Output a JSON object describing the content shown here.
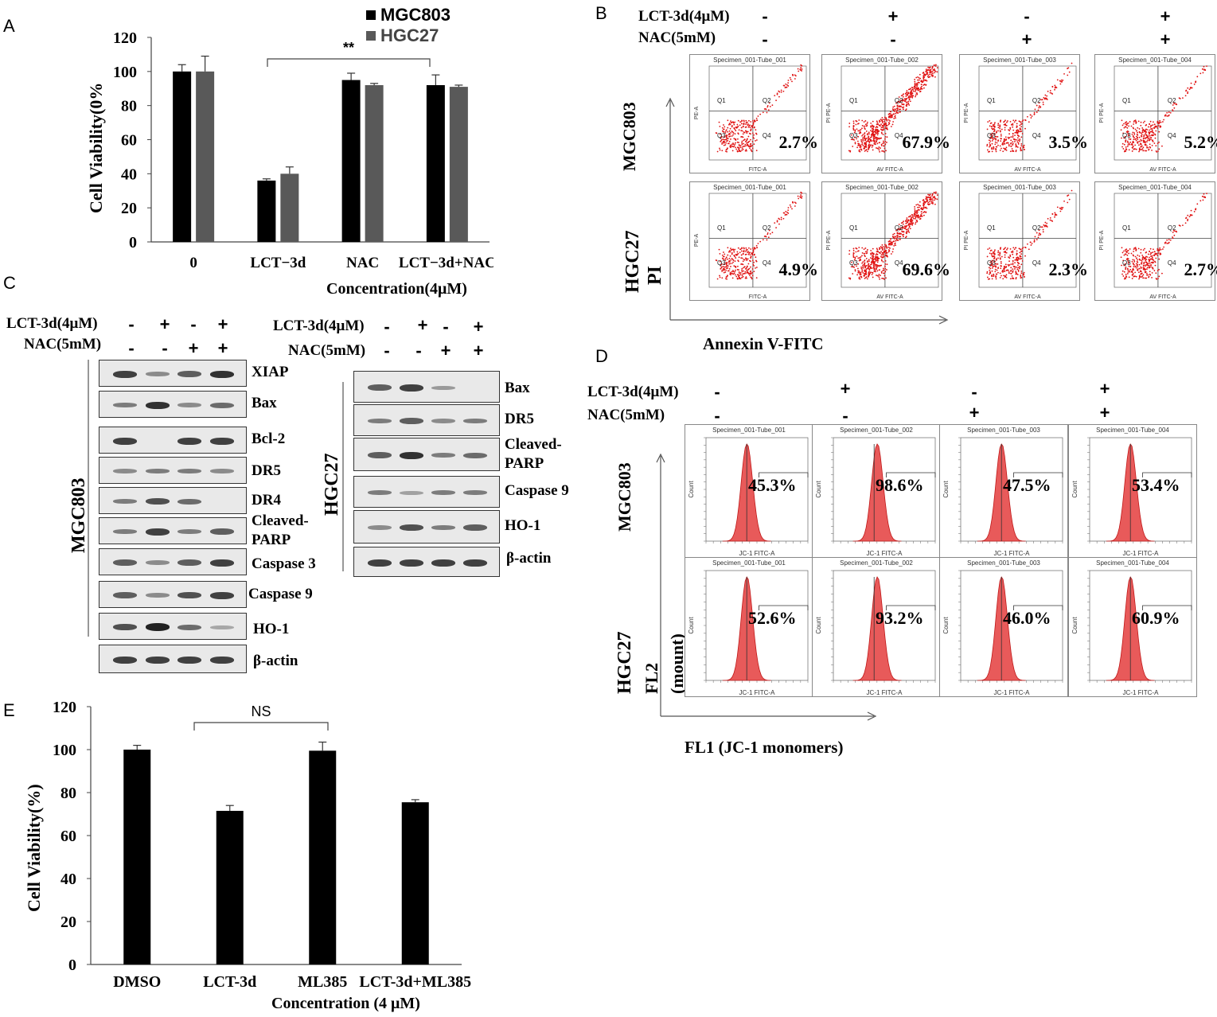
{
  "panelA": {
    "label": "A",
    "chart_data": {
      "type": "bar",
      "categories": [
        "0",
        "LCT−3d",
        "NAC",
        "LCT−3d+NAC"
      ],
      "series": [
        {
          "name": "MGC803",
          "values": [
            100,
            36,
            95,
            92
          ],
          "errors": [
            4,
            1,
            4,
            6
          ],
          "color": "#000000"
        },
        {
          "name": "HGC27",
          "values": [
            100,
            40,
            92,
            91
          ],
          "errors": [
            9,
            4,
            1,
            1
          ],
          "color": "#595959"
        }
      ],
      "ylabel": "Cell Viability(0%",
      "xlabel": "Concentration(4μM)",
      "ylim": [
        0,
        120
      ],
      "yticks": [
        "0",
        "20",
        "40",
        "60",
        "80",
        "100",
        "120"
      ],
      "annotation": "**"
    }
  },
  "panelB": {
    "label": "B",
    "lct_label": "LCT-3d(4μM)",
    "nac_label": "NAC(5mM)",
    "lct_signs": [
      "-",
      "+",
      "-",
      "+"
    ],
    "nac_signs": [
      "-",
      "-",
      "+",
      "+"
    ],
    "row_labels": [
      "MGC803",
      "HGC27"
    ],
    "y_axis_label": "PI",
    "x_axis_label": "Annexin V-FITC",
    "rows": [
      {
        "titles": [
          "Specimen_001-Tube_001",
          "Specimen_001-Tube_002",
          "Specimen_001-Tube_003",
          "Specimen_001-Tube_004"
        ],
        "values": [
          "2.7%",
          "67.9%",
          "3.5%",
          "5.2%"
        ],
        "xaxis": [
          "FITC-A",
          "AV FITC-A",
          "AV FITC-A",
          "AV FITC-A"
        ],
        "yaxis": [
          "PE-A",
          "PI PE-A",
          "PI PE-A",
          "PI PE-A"
        ]
      },
      {
        "titles": [
          "Specimen_001-Tube_001",
          "Specimen_001-Tube_002",
          "Specimen_001-Tube_003",
          "Specimen_001-Tube_004"
        ],
        "values": [
          "4.9%",
          "69.6%",
          "2.3%",
          "2.7%"
        ],
        "xaxis": [
          "FITC-A",
          "AV FITC-A",
          "AV FITC-A",
          "AV FITC-A"
        ],
        "yaxis": [
          "PE-A",
          "PI PE-A",
          "PI PE-A",
          "PI PE-A"
        ]
      }
    ],
    "quadrants": [
      "Q1",
      "Q2",
      "Q3",
      "Q4"
    ]
  },
  "panelC": {
    "label": "C",
    "lct_label": "LCT-3d(4μM)",
    "nac_label": "NAC(5mM)",
    "lct_signs": [
      "-",
      "+",
      "-",
      "+"
    ],
    "nac_signs": [
      "-",
      "-",
      "+",
      "+"
    ],
    "left_cell": "MGC803",
    "right_cell": "HGC27",
    "left_proteins": [
      "XIAP",
      "Bax",
      "Bcl-2",
      "DR5",
      "DR4",
      "Cleaved-",
      "PARP",
      "Caspase 3",
      "Caspase 9",
      "HO-1",
      "β-actin"
    ],
    "right_proteins": [
      "Bax",
      "DR5",
      "Cleaved-",
      "PARP",
      "Caspase 9",
      "HO-1",
      "β-actin"
    ]
  },
  "panelD": {
    "label": "D",
    "lct_label": "LCT-3d(4μM)",
    "nac_label": "NAC(5mM)",
    "lct_signs": [
      "-",
      "+",
      "-",
      "+"
    ],
    "nac_signs": [
      "-",
      "-",
      "+",
      "+"
    ],
    "row_labels": [
      "MGC803",
      "HGC27"
    ],
    "y_axis_label": "FL2",
    "y_axis_sub": "(mount)",
    "x_axis_label": "FL1 (JC-1 monomers)",
    "rows": [
      {
        "titles": [
          "Specimen_001-Tube_001",
          "Specimen_001-Tube_002",
          "Specimen_001-Tube_003",
          "Specimen_001-Tube_004"
        ],
        "values": [
          "45.3%",
          "98.6%",
          "47.5%",
          "53.4%"
        ]
      },
      {
        "titles": [
          "Specimen_001-Tube_001",
          "Specimen_001-Tube_002",
          "Specimen_001-Tube_003",
          "Specimen_001-Tube_004"
        ],
        "values": [
          "52.6%",
          "93.2%",
          "46.0%",
          "60.9%"
        ]
      }
    ],
    "count_label": "Count",
    "xaxis_label": "JC-1 FITC-A"
  },
  "panelE": {
    "label": "E",
    "chart_data": {
      "type": "bar",
      "categories": [
        "DMSO",
        "LCT-3d",
        "ML385",
        "LCT-3d+ML385"
      ],
      "series": [
        {
          "name": "Cell Viability",
          "values": [
            100,
            71.5,
            99.5,
            75.5
          ],
          "errors": [
            2,
            2.5,
            4,
            1.2
          ],
          "color": "#000000"
        }
      ],
      "ylabel": "Cell  Viability(%)",
      "xlabel": "Concentration (4 μM)",
      "ylim": [
        0,
        120
      ],
      "yticks": [
        "0",
        "20",
        "40",
        "60",
        "80",
        "100",
        "120"
      ],
      "annotation": "NS"
    }
  }
}
